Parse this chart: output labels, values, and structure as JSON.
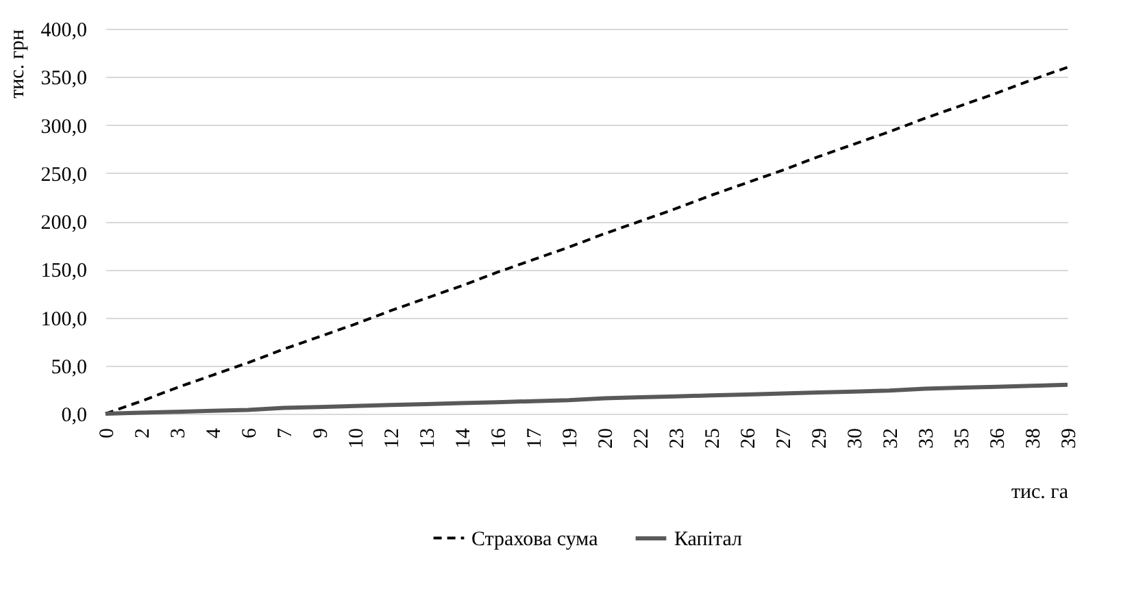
{
  "chart_data": {
    "type": "line",
    "xlabel": "тис. га",
    "ylabel": "тис. грн",
    "categories": [
      "0",
      "2",
      "3",
      "4",
      "6",
      "7",
      "9",
      "10",
      "12",
      "13",
      "14",
      "16",
      "17",
      "19",
      "20",
      "22",
      "23",
      "25",
      "26",
      "27",
      "29",
      "30",
      "32",
      "33",
      "35",
      "36",
      "38",
      "39"
    ],
    "series": [
      {
        "name": "Страхова сума",
        "color": "#000000",
        "line_style": "dashed",
        "values": [
          0,
          13,
          27,
          40,
          53,
          67,
          80,
          93,
          107,
          120,
          133,
          147,
          160,
          173,
          187,
          200,
          213,
          227,
          240,
          253,
          267,
          280,
          293,
          307,
          320,
          333,
          347,
          360
        ]
      },
      {
        "name": "Капітал",
        "color": "#595959",
        "line_style": "solid",
        "values": [
          0,
          1,
          2,
          3,
          4,
          6,
          7,
          8,
          9,
          10,
          11,
          12,
          13,
          14,
          16,
          17,
          18,
          19,
          20,
          21,
          22,
          23,
          24,
          26,
          27,
          28,
          29,
          30
        ]
      }
    ],
    "ylim": [
      0,
      400
    ],
    "yticks": [
      {
        "value": 0,
        "label": "0,0"
      },
      {
        "value": 50,
        "label": "50,0"
      },
      {
        "value": 100,
        "label": "100,0"
      },
      {
        "value": 150,
        "label": "150,0"
      },
      {
        "value": 200,
        "label": "200,0"
      },
      {
        "value": 250,
        "label": "250,0"
      },
      {
        "value": 300,
        "label": "300,0"
      },
      {
        "value": 350,
        "label": "350,0"
      },
      {
        "value": 400,
        "label": "400,0"
      }
    ],
    "grid": "y",
    "legend": "bottom",
    "marker": "none"
  }
}
